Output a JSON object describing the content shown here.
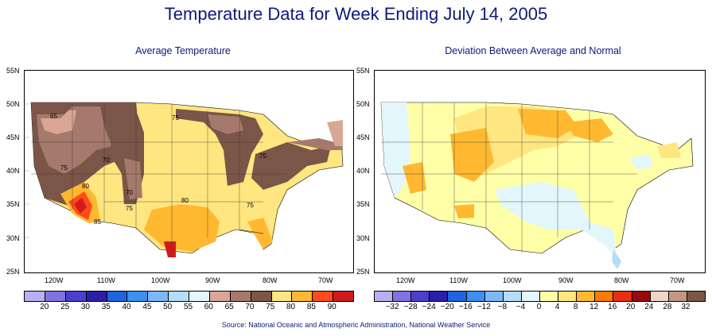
{
  "title": "Temperature Data for Week Ending July 14, 2005",
  "left_map": {
    "subtitle": "Average Temperature",
    "legend": [
      {
        "color": "#b7b0f5",
        "label": "20"
      },
      {
        "color": "#7f73e3",
        "label": "25"
      },
      {
        "color": "#4b3fcf",
        "label": "30"
      },
      {
        "color": "#2b1fa8",
        "label": "35"
      },
      {
        "color": "#1e63e0",
        "label": "40"
      },
      {
        "color": "#3d8ff0",
        "label": "45"
      },
      {
        "color": "#7cb8f7",
        "label": "50"
      },
      {
        "color": "#b4dcfb",
        "label": "55"
      },
      {
        "color": "#e2f6fb",
        "label": "60"
      },
      {
        "color": "#d9a793",
        "label": "65"
      },
      {
        "color": "#a57a6c",
        "label": "70"
      },
      {
        "color": "#7a5548",
        "label": "75"
      },
      {
        "color": "#ffe680",
        "label": "80"
      },
      {
        "color": "#ffb830",
        "label": "85"
      },
      {
        "color": "#ff4a1a",
        "label": "90"
      },
      {
        "color": "#d11b1b",
        "label": ""
      }
    ],
    "contour_labels": [
      "65",
      "75",
      "70",
      "75",
      "80",
      "70",
      "75",
      "80",
      "75",
      "85",
      "75"
    ]
  },
  "right_map": {
    "subtitle": "Deviation Between Average and Normal",
    "legend": [
      {
        "color": "#b7b0f5",
        "label": "−32"
      },
      {
        "color": "#7f73e3",
        "label": "−28"
      },
      {
        "color": "#4b3fcf",
        "label": "−24"
      },
      {
        "color": "#2b1fa8",
        "label": "−20"
      },
      {
        "color": "#1e63e0",
        "label": "−16"
      },
      {
        "color": "#3d8ff0",
        "label": "−12"
      },
      {
        "color": "#7cb8f7",
        "label": "−8"
      },
      {
        "color": "#b4dcfb",
        "label": "−4"
      },
      {
        "color": "#e2f6fb",
        "label": "0"
      },
      {
        "color": "#ffffa8",
        "label": "4"
      },
      {
        "color": "#ffe680",
        "label": "8"
      },
      {
        "color": "#ffb830",
        "label": "12"
      },
      {
        "color": "#ff7a00",
        "label": "16"
      },
      {
        "color": "#e83010",
        "label": "20"
      },
      {
        "color": "#9b0a0a",
        "label": "24"
      },
      {
        "color": "#f2d4c8",
        "label": "28"
      },
      {
        "color": "#c49684",
        "label": "32"
      },
      {
        "color": "#7a5548",
        "label": ""
      }
    ]
  },
  "latitudes": [
    "55N",
    "50N",
    "45N",
    "40N",
    "35N",
    "30N",
    "25N"
  ],
  "longitudes": [
    "120W",
    "110W",
    "100W",
    "90W",
    "80W",
    "70W"
  ],
  "source": "Source:  National Oceanic and Atmospheric Administration, National Weather Service",
  "colors": {
    "title": "#0d1a7a"
  }
}
